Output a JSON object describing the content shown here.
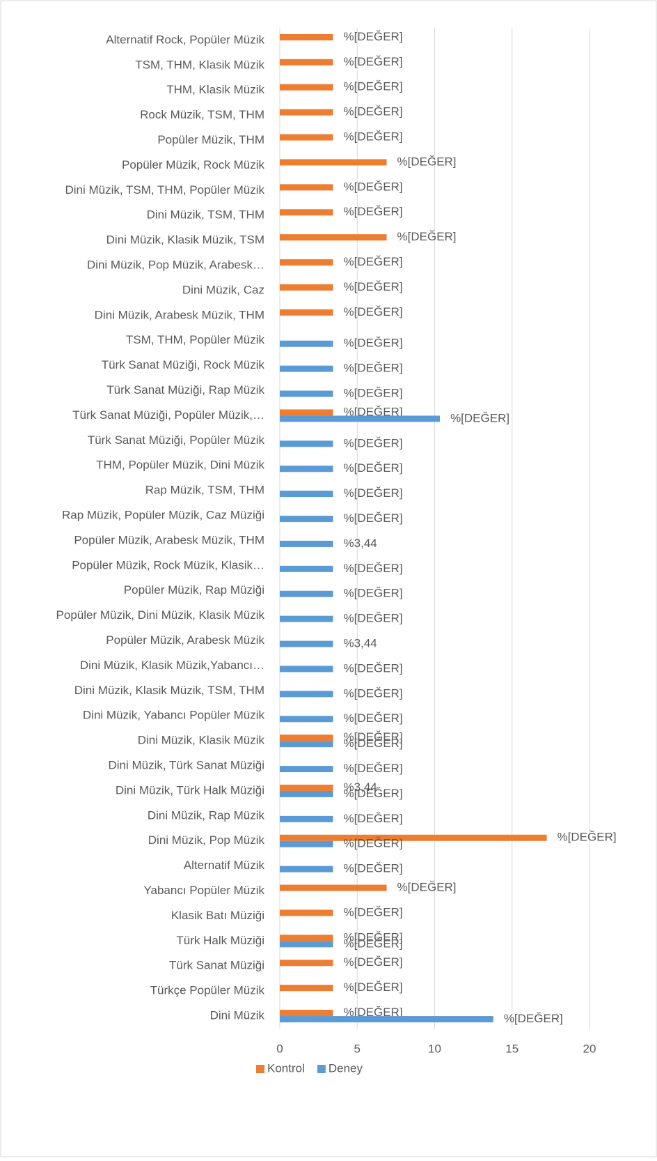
{
  "chart_data": {
    "type": "hbar",
    "categories": [
      "Alternatif Rock, Popüler Müzik",
      "TSM, THM, Klasik Müzik",
      "THM, Klasik Müzik",
      "Rock Müzik, TSM, THM",
      "Popüler Müzik, THM",
      "Popüler Müzik, Rock Müzik",
      "Dini Müzik, TSM, THM, Popüler Müzik",
      "Dini Müzik, TSM, THM",
      "Dini Müzik, Klasik Müzik, TSM",
      "Dini Müzik, Pop Müzik, Arabesk…",
      "Dini Müzik, Caz",
      "Dini Müzik, Arabesk Müzik, THM",
      "TSM, THM, Popüler Müzik",
      "Türk Sanat Müziği, Rock Müzik",
      "Türk Sanat Müziği, Rap Müzik",
      "Türk Sanat Müziği, Popüler Müzik,…",
      "Türk Sanat Müziği, Popüler Müzik",
      "THM, Popüler Müzik, Dini Müzik",
      "Rap Müzik, TSM, THM",
      "Rap Müzik, Popüler Müzik, Caz Müziği",
      "Popüler Müzik, Arabesk Müzik, THM",
      "Popüler Müzik, Rock Müzik, Klasik…",
      "Popüler Müzik, Rap Müziği",
      "Popüler Müzik, Dini Müzik, Klasik Müzik",
      "Popüler Müzik, Arabesk Müzik",
      "Dini Müzik, Klasik Müzik,Yabancı…",
      "Dini Müzik, Klasik Müzik, TSM, THM",
      "Dini Müzik, Yabancı Popüler Müzik",
      "Dini Müzik, Klasik Müzik",
      "Dini Müzik, Türk Sanat Müziği",
      "Dini Müzik, Türk Halk Müziği",
      "Dini Müzik, Rap Müzik",
      "Dini Müzik, Pop Müzik",
      "Alternatif Müzik",
      "Yabancı Popüler Müzik",
      "Klasik Batı Müziği",
      "Türk Halk Müziği",
      "Türk Sanat Müziği",
      "Türkçe Popüler Müzik",
      "Dini Müzik"
    ],
    "series": [
      {
        "name": "Kontrol",
        "color": "#ED7D31",
        "values": [
          3.44,
          3.44,
          3.44,
          3.44,
          3.44,
          6.9,
          3.44,
          3.44,
          6.9,
          3.44,
          3.44,
          3.44,
          null,
          null,
          null,
          3.44,
          null,
          null,
          null,
          null,
          null,
          null,
          null,
          null,
          null,
          null,
          null,
          null,
          3.44,
          null,
          3.44,
          null,
          17.24,
          null,
          6.9,
          3.44,
          3.44,
          3.44,
          3.44,
          3.44
        ],
        "value_labels": [
          "%[DEĞER]",
          "%[DEĞER]",
          "%[DEĞER]",
          "%[DEĞER]",
          "%[DEĞER]",
          "%[DEĞER]",
          "%[DEĞER]",
          "%[DEĞER]",
          "%[DEĞER]",
          "%[DEĞER]",
          "%[DEĞER]",
          "%[DEĞER]",
          null,
          null,
          null,
          "%[DEĞER]",
          null,
          null,
          null,
          null,
          null,
          null,
          null,
          null,
          null,
          null,
          null,
          null,
          "%[DEĞER]",
          null,
          "%3,44",
          null,
          "%[DEĞER]",
          null,
          "%[DEĞER]",
          "%[DEĞER]",
          "%[DEĞER]",
          "%[DEĞER]",
          "%[DEĞER]",
          "%[DEĞER]"
        ]
      },
      {
        "name": "Deney",
        "color": "#5B9BD5",
        "values": [
          null,
          null,
          null,
          null,
          null,
          null,
          null,
          null,
          null,
          null,
          null,
          null,
          3.44,
          3.44,
          3.44,
          10.34,
          3.44,
          3.44,
          3.44,
          3.44,
          3.44,
          3.44,
          3.44,
          3.44,
          3.44,
          3.44,
          3.44,
          3.44,
          3.44,
          3.44,
          3.44,
          3.44,
          3.44,
          3.44,
          null,
          null,
          3.44,
          null,
          null,
          13.79
        ],
        "value_labels": [
          null,
          null,
          null,
          null,
          null,
          null,
          null,
          null,
          null,
          null,
          null,
          null,
          "%[DEĞER]",
          "%[DEĞER]",
          "%[DEĞER]",
          "%[DEĞER]",
          "%[DEĞER]",
          "%[DEĞER]",
          "%[DEĞER]",
          "%[DEĞER]",
          "%3,44",
          "%[DEĞER]",
          "%[DEĞER]",
          "%[DEĞER]",
          "%3,44",
          "%[DEĞER]",
          "%[DEĞER]",
          "%[DEĞER]",
          "%[DEĞER]",
          "%[DEĞER]",
          "%[DEĞER]",
          "%[DEĞER]",
          "%[DEĞER]",
          "%[DEĞER]",
          null,
          null,
          "%[DEĞER]",
          null,
          null,
          "%[DEĞER]"
        ]
      }
    ],
    "xlim": [
      0,
      20
    ],
    "xticks": [
      0,
      5,
      10,
      15,
      20
    ],
    "grid": true,
    "legend": "bottom"
  }
}
